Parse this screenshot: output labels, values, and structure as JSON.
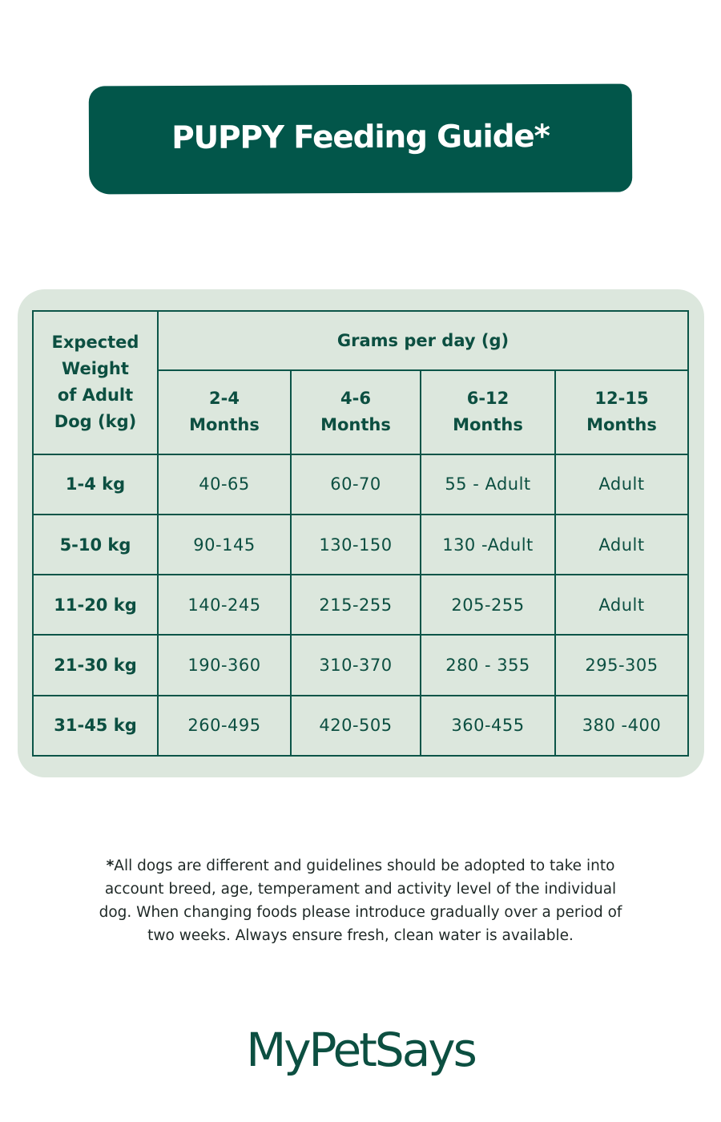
{
  "banner": {
    "title": "PUPPY Feeding Guide*"
  },
  "table": {
    "weight_header": [
      "Expected",
      "Weight",
      "of Adult",
      "Dog (kg)"
    ],
    "grams_header": "Grams per day (g)",
    "age_columns": [
      [
        "2-4",
        "Months"
      ],
      [
        "4-6",
        "Months"
      ],
      [
        "6-12",
        "Months"
      ],
      [
        "12-15",
        "Months"
      ]
    ],
    "rows": [
      {
        "weight": "1-4 kg",
        "values": [
          "40-65",
          "60-70",
          "55 - Adult",
          "Adult"
        ]
      },
      {
        "weight": "5-10 kg",
        "values": [
          "90-145",
          "130-150",
          "130 -Adult",
          "Adult"
        ]
      },
      {
        "weight": "11-20 kg",
        "values": [
          "140-245",
          "215-255",
          "205-255",
          "Adult"
        ]
      },
      {
        "weight": "21-30 kg",
        "values": [
          "190-360",
          "310-370",
          "280 - 355",
          "295-305"
        ]
      },
      {
        "weight": "31-45 kg",
        "values": [
          "260-495",
          "420-505",
          "360-455",
          "380 -400"
        ]
      }
    ]
  },
  "footnote": {
    "star": "*",
    "lines": [
      "All dogs are different and guidelines should be adopted to take into",
      "account breed, age, temperament and activity level of the individual",
      "dog. When changing foods please introduce gradually over a period of",
      "two weeks. Always ensure fresh, clean water is available."
    ]
  },
  "brand": {
    "logo_text": "MyPetSays"
  },
  "colors": {
    "primary_green": "#02564a",
    "panel_bg": "#dce7dd",
    "text_green": "#0c4f41"
  }
}
